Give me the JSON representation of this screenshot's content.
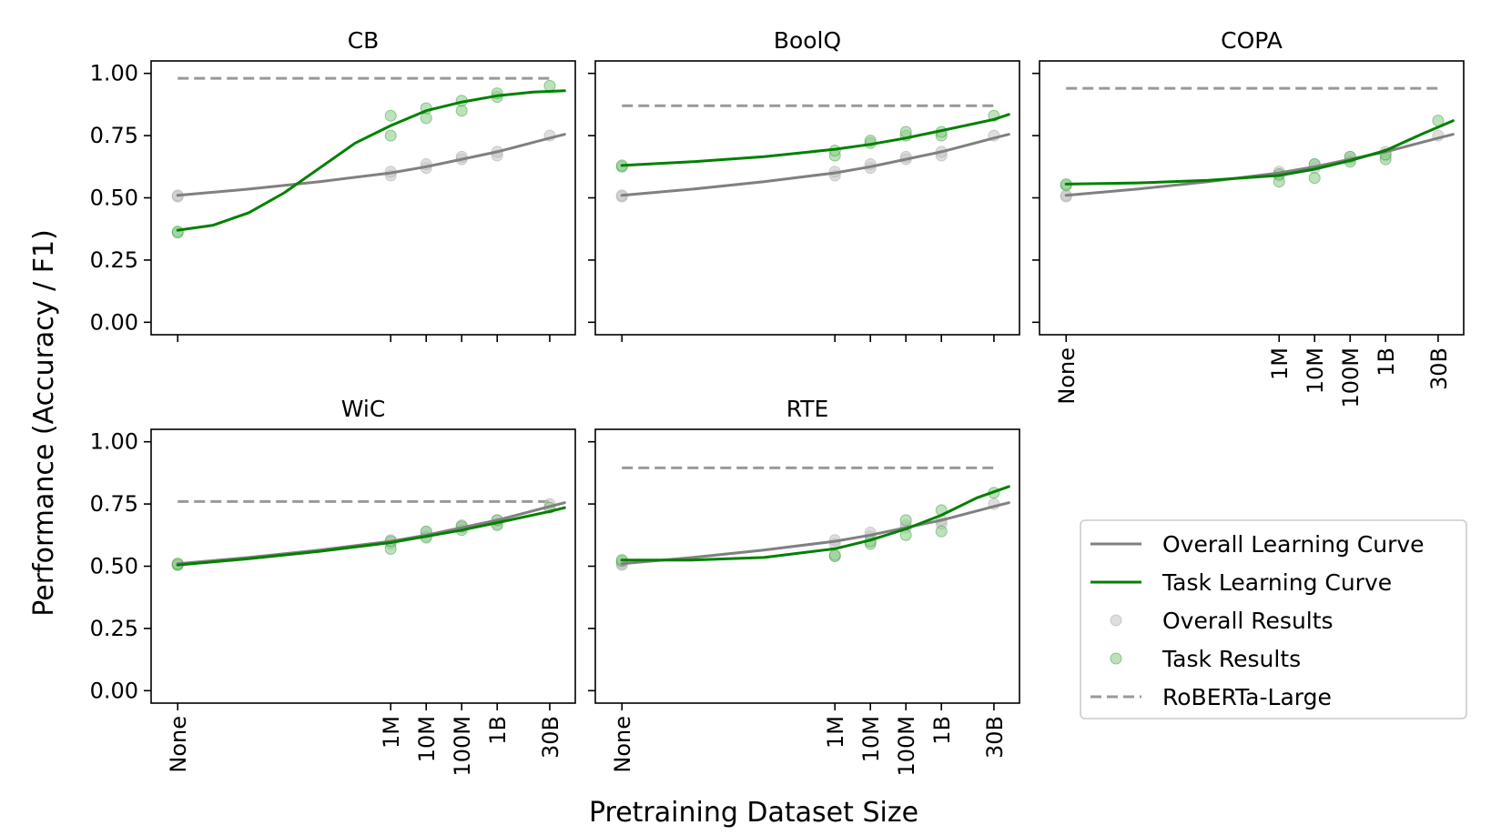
{
  "figure": {
    "ylabel": "Performance (Accuracy / F1)",
    "xlabel": "Pretraining Dataset Size"
  },
  "colors": {
    "overall": "#808080",
    "task": "#008000",
    "roberta": "#999999",
    "overall_points": "#c8c8c8",
    "task_points": "#8fcf8f"
  },
  "x_positions": {
    "categories": [
      "None",
      "1M",
      "10M",
      "100M",
      "1B",
      "30B"
    ],
    "values": [
      0,
      6,
      7,
      8,
      9,
      10.48
    ]
  },
  "legend": {
    "position": "lower-right",
    "items": [
      {
        "key": "overall_curve",
        "label": "Overall Learning Curve"
      },
      {
        "key": "task_curve",
        "label": "Task Learning Curve"
      },
      {
        "key": "overall_results",
        "label": "Overall Results"
      },
      {
        "key": "task_results",
        "label": "Task Results"
      },
      {
        "key": "roberta",
        "label": "RoBERTa-Large"
      }
    ]
  },
  "chart_data": [
    {
      "type": "line",
      "title": "CB",
      "yticks": [
        "0.00",
        "0.25",
        "0.50",
        "0.75",
        "1.00"
      ],
      "ylim": [
        -0.05,
        1.05
      ],
      "xlim": [
        -0.75,
        11.2
      ],
      "roberta": 0.98,
      "overall_curve": [
        [
          0,
          0.51
        ],
        [
          2,
          0.535
        ],
        [
          4,
          0.565
        ],
        [
          6,
          0.6
        ],
        [
          7,
          0.625
        ],
        [
          8,
          0.655
        ],
        [
          9,
          0.685
        ],
        [
          10.48,
          0.74
        ],
        [
          10.9,
          0.755
        ]
      ],
      "task_curve": [
        [
          0,
          0.37
        ],
        [
          1,
          0.39
        ],
        [
          2,
          0.44
        ],
        [
          3,
          0.52
        ],
        [
          4,
          0.62
        ],
        [
          5,
          0.72
        ],
        [
          6,
          0.79
        ],
        [
          7,
          0.85
        ],
        [
          8,
          0.885
        ],
        [
          9,
          0.91
        ],
        [
          10,
          0.925
        ],
        [
          10.9,
          0.93
        ]
      ],
      "overall_points": [
        [
          0,
          0.505
        ],
        [
          0,
          0.51
        ],
        [
          6,
          0.59
        ],
        [
          6,
          0.605
        ],
        [
          7,
          0.62
        ],
        [
          7,
          0.635
        ],
        [
          8,
          0.655
        ],
        [
          8,
          0.665
        ],
        [
          9,
          0.67
        ],
        [
          9,
          0.685
        ],
        [
          10.48,
          0.75
        ]
      ],
      "task_points": [
        [
          0,
          0.36
        ],
        [
          0,
          0.365
        ],
        [
          6,
          0.75
        ],
        [
          6,
          0.83
        ],
        [
          7,
          0.82
        ],
        [
          7,
          0.86
        ],
        [
          8,
          0.85
        ],
        [
          8,
          0.89
        ],
        [
          9,
          0.905
        ],
        [
          9,
          0.92
        ],
        [
          10.48,
          0.95
        ]
      ]
    },
    {
      "type": "line",
      "title": "BoolQ",
      "yticks": [
        "0.00",
        "0.25",
        "0.50",
        "0.75",
        "1.00"
      ],
      "ylim": [
        -0.05,
        1.05
      ],
      "xlim": [
        -0.75,
        11.2
      ],
      "roberta": 0.87,
      "overall_curve": [
        [
          0,
          0.51
        ],
        [
          2,
          0.535
        ],
        [
          4,
          0.565
        ],
        [
          6,
          0.6
        ],
        [
          7,
          0.625
        ],
        [
          8,
          0.655
        ],
        [
          9,
          0.685
        ],
        [
          10.48,
          0.74
        ],
        [
          10.9,
          0.755
        ]
      ],
      "task_curve": [
        [
          0,
          0.63
        ],
        [
          2,
          0.645
        ],
        [
          4,
          0.665
        ],
        [
          6,
          0.695
        ],
        [
          7,
          0.715
        ],
        [
          8,
          0.74
        ],
        [
          9,
          0.77
        ],
        [
          10.48,
          0.815
        ],
        [
          10.9,
          0.835
        ]
      ],
      "overall_points": [
        [
          0,
          0.505
        ],
        [
          0,
          0.51
        ],
        [
          6,
          0.59
        ],
        [
          6,
          0.605
        ],
        [
          7,
          0.62
        ],
        [
          7,
          0.635
        ],
        [
          8,
          0.655
        ],
        [
          8,
          0.665
        ],
        [
          9,
          0.67
        ],
        [
          9,
          0.685
        ],
        [
          10.48,
          0.75
        ]
      ],
      "task_points": [
        [
          0,
          0.625
        ],
        [
          0,
          0.63
        ],
        [
          6,
          0.67
        ],
        [
          6,
          0.69
        ],
        [
          7,
          0.72
        ],
        [
          7,
          0.73
        ],
        [
          8,
          0.75
        ],
        [
          8,
          0.765
        ],
        [
          9,
          0.75
        ],
        [
          9,
          0.765
        ],
        [
          10.48,
          0.83
        ]
      ]
    },
    {
      "type": "line",
      "title": "COPA",
      "yticks": [
        "0.00",
        "0.25",
        "0.50",
        "0.75",
        "1.00"
      ],
      "ylim": [
        -0.05,
        1.05
      ],
      "xlim": [
        -0.75,
        11.2
      ],
      "roberta": 0.94,
      "overall_curve": [
        [
          0,
          0.51
        ],
        [
          2,
          0.535
        ],
        [
          4,
          0.565
        ],
        [
          6,
          0.6
        ],
        [
          7,
          0.625
        ],
        [
          8,
          0.655
        ],
        [
          9,
          0.685
        ],
        [
          10.48,
          0.74
        ],
        [
          10.9,
          0.755
        ]
      ],
      "task_curve": [
        [
          0,
          0.555
        ],
        [
          2,
          0.56
        ],
        [
          4,
          0.57
        ],
        [
          6,
          0.59
        ],
        [
          7,
          0.615
        ],
        [
          8,
          0.65
        ],
        [
          9,
          0.69
        ],
        [
          10,
          0.755
        ],
        [
          10.9,
          0.81
        ]
      ],
      "overall_points": [
        [
          0,
          0.505
        ],
        [
          0,
          0.51
        ],
        [
          6,
          0.59
        ],
        [
          6,
          0.605
        ],
        [
          7,
          0.62
        ],
        [
          7,
          0.635
        ],
        [
          8,
          0.655
        ],
        [
          8,
          0.665
        ],
        [
          9,
          0.67
        ],
        [
          9,
          0.685
        ],
        [
          10.48,
          0.75
        ]
      ],
      "task_points": [
        [
          0,
          0.55
        ],
        [
          0,
          0.555
        ],
        [
          6,
          0.565
        ],
        [
          6,
          0.595
        ],
        [
          7,
          0.58
        ],
        [
          7,
          0.635
        ],
        [
          8,
          0.645
        ],
        [
          8,
          0.665
        ],
        [
          9,
          0.655
        ],
        [
          9,
          0.675
        ],
        [
          10.48,
          0.81
        ]
      ]
    },
    {
      "type": "line",
      "title": "WiC",
      "yticks": [
        "0.00",
        "0.25",
        "0.50",
        "0.75",
        "1.00"
      ],
      "ylim": [
        -0.05,
        1.05
      ],
      "xlim": [
        -0.75,
        11.2
      ],
      "roberta": 0.76,
      "overall_curve": [
        [
          0,
          0.51
        ],
        [
          2,
          0.535
        ],
        [
          4,
          0.565
        ],
        [
          6,
          0.6
        ],
        [
          7,
          0.625
        ],
        [
          8,
          0.655
        ],
        [
          9,
          0.685
        ],
        [
          10.48,
          0.74
        ],
        [
          10.9,
          0.755
        ]
      ],
      "task_curve": [
        [
          0,
          0.505
        ],
        [
          2,
          0.53
        ],
        [
          4,
          0.56
        ],
        [
          6,
          0.595
        ],
        [
          7,
          0.62
        ],
        [
          8,
          0.645
        ],
        [
          9,
          0.675
        ],
        [
          10.48,
          0.72
        ],
        [
          10.9,
          0.735
        ]
      ],
      "overall_points": [
        [
          0,
          0.505
        ],
        [
          0,
          0.51
        ],
        [
          6,
          0.59
        ],
        [
          6,
          0.605
        ],
        [
          7,
          0.62
        ],
        [
          7,
          0.635
        ],
        [
          8,
          0.655
        ],
        [
          8,
          0.665
        ],
        [
          9,
          0.67
        ],
        [
          9,
          0.685
        ],
        [
          10.48,
          0.75
        ]
      ],
      "task_points": [
        [
          0,
          0.505
        ],
        [
          0,
          0.51
        ],
        [
          6,
          0.57
        ],
        [
          6,
          0.6
        ],
        [
          7,
          0.615
        ],
        [
          7,
          0.64
        ],
        [
          8,
          0.645
        ],
        [
          8,
          0.66
        ],
        [
          9,
          0.665
        ],
        [
          9,
          0.685
        ],
        [
          10.48,
          0.735
        ]
      ]
    },
    {
      "type": "line",
      "title": "RTE",
      "yticks": [
        "0.00",
        "0.25",
        "0.50",
        "0.75",
        "1.00"
      ],
      "ylim": [
        -0.05,
        1.05
      ],
      "xlim": [
        -0.75,
        11.2
      ],
      "roberta": 0.895,
      "overall_curve": [
        [
          0,
          0.51
        ],
        [
          2,
          0.535
        ],
        [
          4,
          0.565
        ],
        [
          6,
          0.6
        ],
        [
          7,
          0.625
        ],
        [
          8,
          0.655
        ],
        [
          9,
          0.685
        ],
        [
          10.48,
          0.74
        ],
        [
          10.9,
          0.755
        ]
      ],
      "task_curve": [
        [
          0,
          0.525
        ],
        [
          2,
          0.525
        ],
        [
          4,
          0.535
        ],
        [
          6,
          0.57
        ],
        [
          7,
          0.605
        ],
        [
          8,
          0.65
        ],
        [
          9,
          0.705
        ],
        [
          10,
          0.775
        ],
        [
          10.9,
          0.82
        ]
      ],
      "overall_points": [
        [
          0,
          0.505
        ],
        [
          0,
          0.51
        ],
        [
          6,
          0.59
        ],
        [
          6,
          0.605
        ],
        [
          7,
          0.62
        ],
        [
          7,
          0.635
        ],
        [
          8,
          0.655
        ],
        [
          8,
          0.665
        ],
        [
          9,
          0.67
        ],
        [
          9,
          0.685
        ],
        [
          10.48,
          0.75
        ]
      ],
      "task_points": [
        [
          0,
          0.52
        ],
        [
          0,
          0.525
        ],
        [
          6,
          0.54
        ],
        [
          6,
          0.545
        ],
        [
          7,
          0.59
        ],
        [
          7,
          0.6
        ],
        [
          8,
          0.625
        ],
        [
          8,
          0.685
        ],
        [
          9,
          0.64
        ],
        [
          9,
          0.725
        ],
        [
          10.48,
          0.795
        ]
      ]
    }
  ]
}
